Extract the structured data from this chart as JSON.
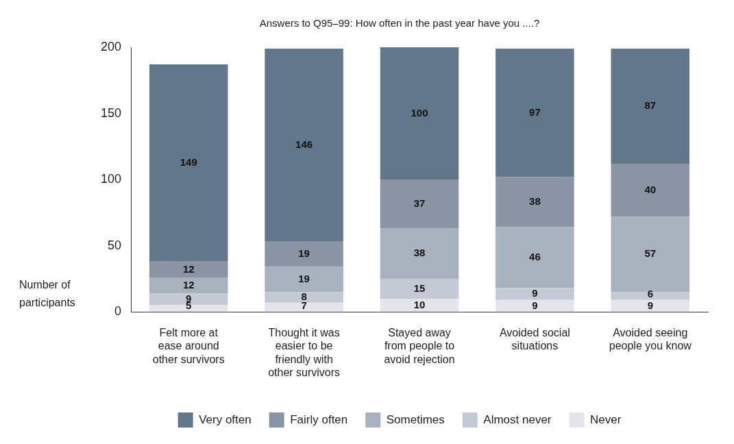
{
  "chart_data": {
    "type": "bar",
    "stacked": true,
    "title": "Answers to Q95–99: How often in the past year have you ....?",
    "ylabel": "Number of participants",
    "categories": [
      "Felt more at ease around other survivors",
      "Thought it was easier to be friendly with other survivors",
      "Stayed away from people to avoid rejection",
      "Avoided social situations",
      "Avoided seeing people you know"
    ],
    "series": [
      {
        "name": "Never",
        "color": "#e3e5ea",
        "values": [
          5,
          7,
          10,
          9,
          9
        ]
      },
      {
        "name": "Almost never",
        "color": "#c5c9d3",
        "values": [
          9,
          8,
          15,
          9,
          6
        ]
      },
      {
        "name": "Sometimes",
        "color": "#a9b1bf",
        "values": [
          12,
          19,
          38,
          46,
          57
        ]
      },
      {
        "name": "Fairly often",
        "color": "#8a94a4",
        "values": [
          12,
          19,
          37,
          38,
          40
        ]
      },
      {
        "name": "Very often",
        "color": "#62778a",
        "values": [
          149,
          146,
          100,
          97,
          87
        ]
      }
    ],
    "ylim": [
      0,
      200
    ],
    "yticks": [
      0,
      50,
      100,
      150,
      200
    ],
    "grid": false,
    "legend": "bottom",
    "data_labels": true
  }
}
